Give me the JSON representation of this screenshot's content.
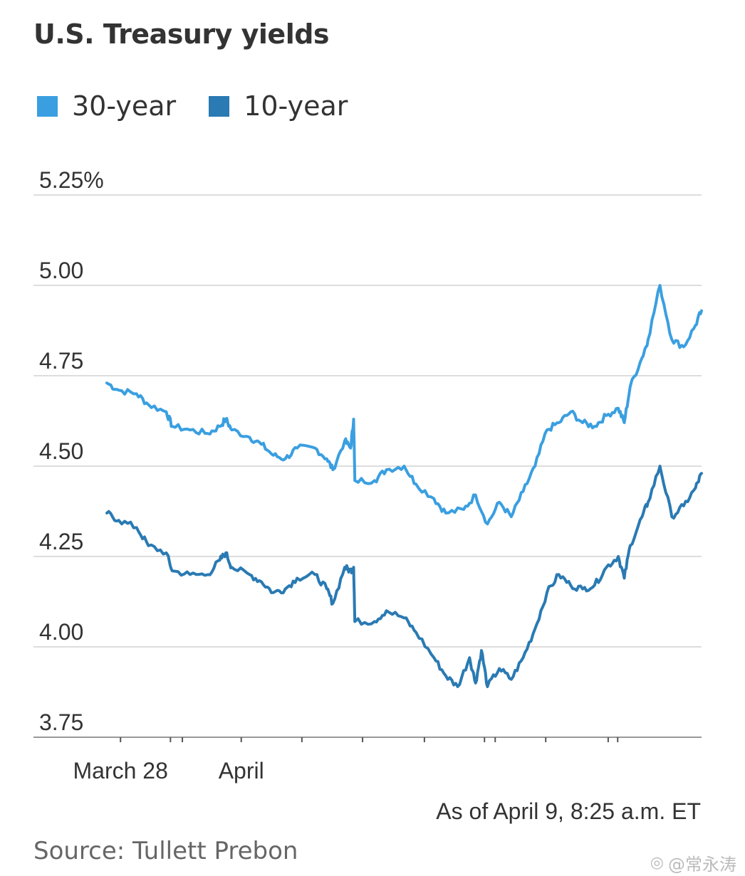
{
  "title": "U.S. Treasury yields",
  "legend": [
    {
      "label": "30-year",
      "color": "#3a9fe0"
    },
    {
      "label": "10-year",
      "color": "#2a7ab3"
    }
  ],
  "note": "As of April 9, 8:25 a.m. ET",
  "source": "Source: Tullett Prebon",
  "watermark": "@常永涛",
  "chart_data": {
    "type": "line",
    "title": "U.S. Treasury yields",
    "xlabel": "",
    "ylabel": "",
    "ylim": [
      3.75,
      5.25
    ],
    "yticks": [
      {
        "value": 5.25,
        "label": "5.25%"
      },
      {
        "value": 5.0,
        "label": "5.00"
      },
      {
        "value": 4.75,
        "label": "4.75"
      },
      {
        "value": 4.5,
        "label": "4.50"
      },
      {
        "value": 4.25,
        "label": "4.25"
      },
      {
        "value": 4.0,
        "label": "4.00"
      },
      {
        "value": 3.75,
        "label": "3.75"
      }
    ],
    "xlim": [
      0,
      1
    ],
    "xtick_marks": [
      0.023,
      0.107,
      0.127,
      0.226,
      0.328,
      0.43,
      0.534,
      0.635,
      0.653,
      0.738,
      0.843,
      0.859
    ],
    "xtick_labels": [
      {
        "x": 0.023,
        "label": "March 28"
      },
      {
        "x": 0.226,
        "label": "April"
      }
    ],
    "grid": true,
    "legend_position": "top-left",
    "series": [
      {
        "name": "30-year",
        "color": "#3a9fe0",
        "points": [
          [
            0.0,
            4.73
          ],
          [
            0.02,
            4.71
          ],
          [
            0.05,
            4.7
          ],
          [
            0.07,
            4.67
          ],
          [
            0.1,
            4.65
          ],
          [
            0.11,
            4.61
          ],
          [
            0.14,
            4.6
          ],
          [
            0.17,
            4.59
          ],
          [
            0.19,
            4.61
          ],
          [
            0.2,
            4.63
          ],
          [
            0.21,
            4.6
          ],
          [
            0.24,
            4.58
          ],
          [
            0.26,
            4.56
          ],
          [
            0.28,
            4.53
          ],
          [
            0.3,
            4.52
          ],
          [
            0.32,
            4.55
          ],
          [
            0.35,
            4.55
          ],
          [
            0.37,
            4.52
          ],
          [
            0.38,
            4.49
          ],
          [
            0.4,
            4.57
          ],
          [
            0.41,
            4.55
          ],
          [
            0.415,
            4.63
          ],
          [
            0.417,
            4.46
          ],
          [
            0.45,
            4.46
          ],
          [
            0.47,
            4.49
          ],
          [
            0.5,
            4.5
          ],
          [
            0.52,
            4.45
          ],
          [
            0.55,
            4.41
          ],
          [
            0.57,
            4.37
          ],
          [
            0.6,
            4.38
          ],
          [
            0.62,
            4.42
          ],
          [
            0.64,
            4.34
          ],
          [
            0.66,
            4.4
          ],
          [
            0.68,
            4.36
          ],
          [
            0.7,
            4.43
          ],
          [
            0.72,
            4.5
          ],
          [
            0.74,
            4.6
          ],
          [
            0.76,
            4.62
          ],
          [
            0.78,
            4.65
          ],
          [
            0.8,
            4.62
          ],
          [
            0.82,
            4.61
          ],
          [
            0.84,
            4.64
          ],
          [
            0.86,
            4.66
          ],
          [
            0.87,
            4.62
          ],
          [
            0.88,
            4.72
          ],
          [
            0.9,
            4.8
          ],
          [
            0.91,
            4.85
          ],
          [
            0.93,
            5.0
          ],
          [
            0.95,
            4.85
          ],
          [
            0.97,
            4.83
          ],
          [
            0.99,
            4.89
          ],
          [
            1.0,
            4.93
          ]
        ]
      },
      {
        "name": "10-year",
        "color": "#2a7ab3",
        "points": [
          [
            0.0,
            4.37
          ],
          [
            0.02,
            4.35
          ],
          [
            0.05,
            4.33
          ],
          [
            0.07,
            4.28
          ],
          [
            0.1,
            4.26
          ],
          [
            0.11,
            4.21
          ],
          [
            0.14,
            4.2
          ],
          [
            0.17,
            4.2
          ],
          [
            0.19,
            4.24
          ],
          [
            0.2,
            4.26
          ],
          [
            0.21,
            4.22
          ],
          [
            0.24,
            4.2
          ],
          [
            0.26,
            4.18
          ],
          [
            0.28,
            4.15
          ],
          [
            0.3,
            4.16
          ],
          [
            0.32,
            4.19
          ],
          [
            0.35,
            4.2
          ],
          [
            0.37,
            4.16
          ],
          [
            0.38,
            4.12
          ],
          [
            0.4,
            4.22
          ],
          [
            0.41,
            4.21
          ],
          [
            0.415,
            4.22
          ],
          [
            0.417,
            4.07
          ],
          [
            0.45,
            4.07
          ],
          [
            0.47,
            4.1
          ],
          [
            0.5,
            4.08
          ],
          [
            0.52,
            4.04
          ],
          [
            0.55,
            3.97
          ],
          [
            0.57,
            3.92
          ],
          [
            0.59,
            3.89
          ],
          [
            0.61,
            3.97
          ],
          [
            0.62,
            3.9
          ],
          [
            0.63,
            3.99
          ],
          [
            0.64,
            3.89
          ],
          [
            0.66,
            3.94
          ],
          [
            0.68,
            3.91
          ],
          [
            0.7,
            3.97
          ],
          [
            0.72,
            4.05
          ],
          [
            0.74,
            4.15
          ],
          [
            0.76,
            4.2
          ],
          [
            0.78,
            4.17
          ],
          [
            0.8,
            4.16
          ],
          [
            0.82,
            4.17
          ],
          [
            0.84,
            4.22
          ],
          [
            0.86,
            4.25
          ],
          [
            0.87,
            4.19
          ],
          [
            0.88,
            4.28
          ],
          [
            0.9,
            4.36
          ],
          [
            0.91,
            4.4
          ],
          [
            0.93,
            4.5
          ],
          [
            0.95,
            4.36
          ],
          [
            0.97,
            4.39
          ],
          [
            0.99,
            4.44
          ],
          [
            1.0,
            4.48
          ]
        ]
      }
    ]
  }
}
